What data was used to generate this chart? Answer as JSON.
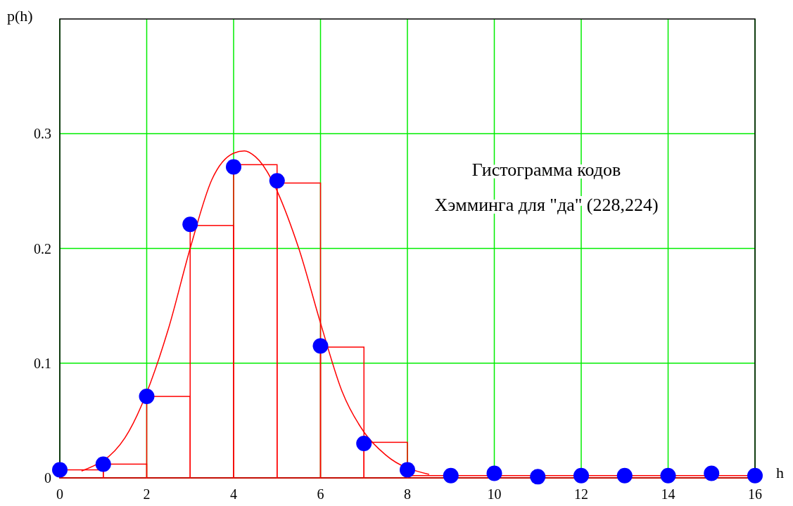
{
  "chart_data": {
    "type": "histogram",
    "xlabel": "h",
    "ylabel": "p(h)",
    "annotations": [
      "Гистограмма кодов",
      "Хэмминга для \"да\" (228,224)"
    ],
    "xlim": [
      0,
      16
    ],
    "xticks": [
      0,
      2,
      4,
      6,
      8,
      10,
      12,
      14,
      16
    ],
    "ylim": [
      0,
      0.4
    ],
    "yticks": [
      0,
      0.1,
      0.2,
      0.3
    ],
    "grid": true,
    "series": [
      {
        "type": "histogram",
        "color": "#ff0000",
        "bins": [
          0,
          1,
          2,
          3,
          4,
          5,
          6,
          7,
          8,
          9,
          10,
          11,
          12,
          13,
          14,
          15,
          16
        ],
        "values": [
          0.007,
          0.012,
          0.071,
          0.22,
          0.273,
          0.257,
          0.114,
          0.031,
          0.002,
          0.002,
          0.002,
          0.002,
          0.002,
          0.002,
          0.002,
          0.002
        ]
      },
      {
        "type": "line",
        "color": "#ff0000",
        "x": [
          0.5,
          1.5,
          2.5,
          3,
          3.5,
          4,
          4.25,
          4.5,
          5.5,
          6,
          6.5,
          7,
          7.5,
          8.5
        ],
        "values": [
          0.006,
          0.035,
          0.13,
          0.2,
          0.26,
          0.283,
          0.285,
          0.28,
          0.2,
          0.135,
          0.075,
          0.04,
          0.02,
          0.003
        ]
      },
      {
        "type": "scatter",
        "color": "#0000ff",
        "marker": "circle",
        "x": [
          0,
          1,
          2,
          3,
          4,
          5,
          6,
          7,
          8,
          9,
          10,
          11,
          12,
          13,
          14,
          15,
          16
        ],
        "values": [
          0.007,
          0.012,
          0.071,
          0.221,
          0.271,
          0.259,
          0.115,
          0.03,
          0.007,
          0.002,
          0.004,
          0.001,
          0.002,
          0.002,
          0.002,
          0.004,
          0.002
        ]
      }
    ]
  }
}
